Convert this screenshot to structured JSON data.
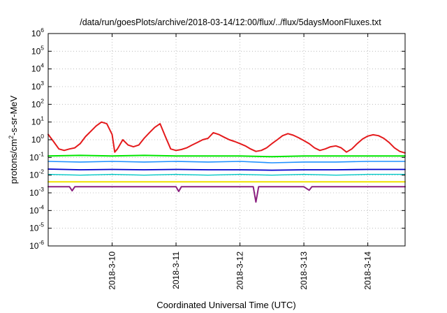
{
  "chart_data": {
    "type": "line",
    "title": "/data/run/goesPlots/archive/2018-03-14/12:00/flux/../flux/5daysMoonFluxes.txt",
    "xlabel": "Coordinated Universal Time (UTC)",
    "ylabel": {
      "pre": "protons/cm",
      "sup": "2",
      "post": "-s-sr-MeV"
    },
    "yscale": "log",
    "ylim": [
      1e-06,
      1000000.0
    ],
    "xlim": [
      "2018-03-09T00:00",
      "2018-03-14T14:00"
    ],
    "grid": true,
    "legend": "none",
    "xticks": [
      {
        "label": "2018-3-10",
        "value": "2018-03-10"
      },
      {
        "label": "2018-3-11",
        "value": "2018-03-11"
      },
      {
        "label": "2018-3-12",
        "value": "2018-03-12"
      },
      {
        "label": "2018-3-13",
        "value": "2018-03-13"
      },
      {
        "label": "2018-3-14",
        "value": "2018-03-14"
      }
    ],
    "yticks": [
      {
        "base": "10",
        "exp": "-6",
        "value": 1e-06
      },
      {
        "base": "10",
        "exp": "-5",
        "value": 1e-05
      },
      {
        "base": "10",
        "exp": "-4",
        "value": 0.0001
      },
      {
        "base": "10",
        "exp": "-3",
        "value": 0.001
      },
      {
        "base": "10",
        "exp": "-2",
        "value": 0.01
      },
      {
        "base": "10",
        "exp": "-1",
        "value": 0.1
      },
      {
        "base": "10",
        "exp": "0",
        "value": 1
      },
      {
        "base": "10",
        "exp": "1",
        "value": 10
      },
      {
        "base": "10",
        "exp": "2",
        "value": 100
      },
      {
        "base": "10",
        "exp": "3",
        "value": 1000
      },
      {
        "base": "10",
        "exp": "4",
        "value": 10000
      },
      {
        "base": "10",
        "exp": "5",
        "value": 100000
      },
      {
        "base": "10",
        "exp": "6",
        "value": 1000000
      }
    ],
    "series": [
      {
        "color": "#e41a1c",
        "width": 2,
        "x": [
          "2018-03-09T00:00",
          "2018-03-09T02:00",
          "2018-03-09T04:00",
          "2018-03-09T06:00",
          "2018-03-09T08:00",
          "2018-03-09T10:00",
          "2018-03-09T12:00",
          "2018-03-09T14:00",
          "2018-03-09T16:00",
          "2018-03-09T18:00",
          "2018-03-09T20:00",
          "2018-03-09T22:00",
          "2018-03-10T00:00",
          "2018-03-10T01:00",
          "2018-03-10T02:00",
          "2018-03-10T04:00",
          "2018-03-10T06:00",
          "2018-03-10T08:00",
          "2018-03-10T10:00",
          "2018-03-10T12:00",
          "2018-03-10T14:00",
          "2018-03-10T16:00",
          "2018-03-10T18:00",
          "2018-03-10T20:00",
          "2018-03-10T22:00",
          "2018-03-11T00:00",
          "2018-03-11T02:00",
          "2018-03-11T04:00",
          "2018-03-11T06:00",
          "2018-03-11T08:00",
          "2018-03-11T10:00",
          "2018-03-11T12:00",
          "2018-03-11T14:00",
          "2018-03-11T16:00",
          "2018-03-11T18:00",
          "2018-03-11T20:00",
          "2018-03-11T22:00",
          "2018-03-12T00:00",
          "2018-03-12T02:00",
          "2018-03-12T04:00",
          "2018-03-12T06:00",
          "2018-03-12T08:00",
          "2018-03-12T10:00",
          "2018-03-12T12:00",
          "2018-03-12T14:00",
          "2018-03-12T16:00",
          "2018-03-12T18:00",
          "2018-03-12T20:00",
          "2018-03-12T22:00",
          "2018-03-13T00:00",
          "2018-03-13T02:00",
          "2018-03-13T04:00",
          "2018-03-13T06:00",
          "2018-03-13T08:00",
          "2018-03-13T10:00",
          "2018-03-13T12:00",
          "2018-03-13T14:00",
          "2018-03-13T16:00",
          "2018-03-13T18:00",
          "2018-03-13T20:00",
          "2018-03-13T22:00",
          "2018-03-14T00:00",
          "2018-03-14T02:00",
          "2018-03-14T04:00",
          "2018-03-14T06:00",
          "2018-03-14T08:00",
          "2018-03-14T10:00",
          "2018-03-14T12:00",
          "2018-03-14T14:00"
        ],
        "y": [
          2.0,
          0.8,
          0.3,
          0.25,
          0.3,
          0.35,
          0.6,
          1.5,
          3.0,
          6.0,
          10.0,
          8.0,
          2.0,
          0.2,
          0.3,
          1.0,
          0.5,
          0.4,
          0.5,
          1.2,
          2.5,
          5.0,
          8.0,
          1.5,
          0.3,
          0.25,
          0.28,
          0.35,
          0.5,
          0.7,
          1.0,
          1.2,
          2.5,
          2.0,
          1.4,
          1.0,
          0.8,
          0.6,
          0.45,
          0.3,
          0.22,
          0.25,
          0.35,
          0.6,
          1.0,
          1.7,
          2.2,
          1.8,
          1.3,
          0.9,
          0.6,
          0.35,
          0.25,
          0.3,
          0.4,
          0.45,
          0.35,
          0.2,
          0.3,
          0.6,
          1.1,
          1.6,
          1.9,
          1.7,
          1.2,
          0.7,
          0.35,
          0.22,
          0.18
        ]
      },
      {
        "color": "#00e600",
        "width": 2,
        "x": [
          "2018-03-09T00:00",
          "2018-03-09T12:00",
          "2018-03-10T00:00",
          "2018-03-10T12:00",
          "2018-03-11T00:00",
          "2018-03-11T12:00",
          "2018-03-12T00:00",
          "2018-03-12T12:00",
          "2018-03-13T00:00",
          "2018-03-13T12:00",
          "2018-03-14T00:00",
          "2018-03-14T14:00"
        ],
        "y": [
          0.12,
          0.13,
          0.12,
          0.13,
          0.12,
          0.12,
          0.12,
          0.11,
          0.12,
          0.12,
          0.12,
          0.12
        ]
      },
      {
        "color": "#1e90ff",
        "width": 1.6,
        "x": [
          "2018-03-09T00:00",
          "2018-03-09T12:00",
          "2018-03-10T00:00",
          "2018-03-10T12:00",
          "2018-03-11T00:00",
          "2018-03-11T12:00",
          "2018-03-12T00:00",
          "2018-03-12T12:00",
          "2018-03-13T00:00",
          "2018-03-13T12:00",
          "2018-03-14T00:00",
          "2018-03-14T14:00"
        ],
        "y": [
          0.06,
          0.055,
          0.06,
          0.055,
          0.06,
          0.055,
          0.06,
          0.05,
          0.055,
          0.055,
          0.06,
          0.06
        ]
      },
      {
        "color": "#0000cd",
        "width": 1.8,
        "x": [
          "2018-03-09T00:00",
          "2018-03-09T12:00",
          "2018-03-10T00:00",
          "2018-03-10T12:00",
          "2018-03-11T00:00",
          "2018-03-11T12:00",
          "2018-03-12T00:00",
          "2018-03-12T12:00",
          "2018-03-13T00:00",
          "2018-03-13T12:00",
          "2018-03-14T00:00",
          "2018-03-14T14:00"
        ],
        "y": [
          0.022,
          0.02,
          0.021,
          0.02,
          0.021,
          0.02,
          0.02,
          0.019,
          0.02,
          0.02,
          0.021,
          0.021
        ]
      },
      {
        "color": "#00c8c8",
        "width": 1.4,
        "x": [
          "2018-03-09T00:00",
          "2018-03-09T12:00",
          "2018-03-10T00:00",
          "2018-03-10T12:00",
          "2018-03-11T00:00",
          "2018-03-11T12:00",
          "2018-03-12T00:00",
          "2018-03-12T12:00",
          "2018-03-13T00:00",
          "2018-03-13T12:00",
          "2018-03-14T00:00",
          "2018-03-14T14:00"
        ],
        "y": [
          0.011,
          0.01,
          0.011,
          0.01,
          0.011,
          0.01,
          0.011,
          0.01,
          0.011,
          0.01,
          0.011,
          0.011
        ]
      },
      {
        "color": "#f0e000",
        "width": 2,
        "x": [
          "2018-03-09T00:00",
          "2018-03-09T12:00",
          "2018-03-10T00:00",
          "2018-03-10T12:00",
          "2018-03-11T00:00",
          "2018-03-11T12:00",
          "2018-03-12T00:00",
          "2018-03-12T12:00",
          "2018-03-13T00:00",
          "2018-03-13T12:00",
          "2018-03-14T00:00",
          "2018-03-14T14:00"
        ],
        "y": [
          0.0042,
          0.0042,
          0.0042,
          0.0042,
          0.0042,
          0.0042,
          0.0042,
          0.0042,
          0.0042,
          0.0042,
          0.0042,
          0.0042
        ]
      },
      {
        "color": "#8b2080",
        "width": 2,
        "x": [
          "2018-03-09T00:00",
          "2018-03-09T08:00",
          "2018-03-09T09:00",
          "2018-03-09T10:00",
          "2018-03-10T00:00",
          "2018-03-11T00:00",
          "2018-03-11T01:00",
          "2018-03-11T02:00",
          "2018-03-12T00:00",
          "2018-03-12T05:00",
          "2018-03-12T06:00",
          "2018-03-12T07:00",
          "2018-03-12T12:00",
          "2018-03-13T00:00",
          "2018-03-13T02:00",
          "2018-03-13T03:00",
          "2018-03-13T04:00",
          "2018-03-14T00:00",
          "2018-03-14T14:00"
        ],
        "y": [
          0.0022,
          0.0022,
          0.0013,
          0.0022,
          0.0022,
          0.0022,
          0.0012,
          0.0022,
          0.0022,
          0.0022,
          0.0003,
          0.0022,
          0.0022,
          0.0022,
          0.0014,
          0.0022,
          0.0022,
          0.0022,
          0.0022
        ]
      }
    ]
  }
}
